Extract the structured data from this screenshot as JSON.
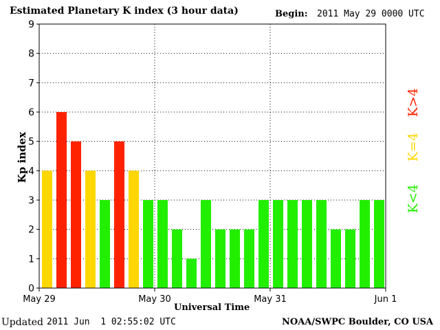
{
  "title": "Estimated Planetary K index (3 hour data)",
  "begin_label": "Begin:",
  "begin_value": "2011 May 29 0000 UTC",
  "updated_label": "Updated",
  "updated_value": "2011 Jun  1 02:55:02 UTC",
  "source": "NOAA/SWPC Boulder, CO USA",
  "legend": {
    "high": {
      "label": "K>4",
      "color": "#ff2200"
    },
    "equal": {
      "label": "K=4",
      "color": "#ffd700"
    },
    "low": {
      "label": "K<4",
      "color": "#22ee00"
    }
  },
  "chart_data": {
    "type": "bar",
    "title": "Estimated Planetary K index (3 hour data)",
    "xlabel": "Universal Time",
    "ylabel": "Kp index",
    "ylim": [
      0,
      9
    ],
    "yticks": [
      "0",
      "1",
      "2",
      "3",
      "4",
      "5",
      "6",
      "7",
      "8",
      "9"
    ],
    "xticks": [
      "May 29",
      "May 30",
      "May 31",
      "Jun 1"
    ],
    "bars_per_day": 8,
    "grid": true,
    "values": [
      4,
      6,
      5,
      4,
      3,
      5,
      4,
      3,
      3,
      2,
      1,
      3,
      2,
      2,
      2,
      3,
      3,
      3,
      3,
      3,
      2,
      2,
      3,
      3
    ]
  }
}
